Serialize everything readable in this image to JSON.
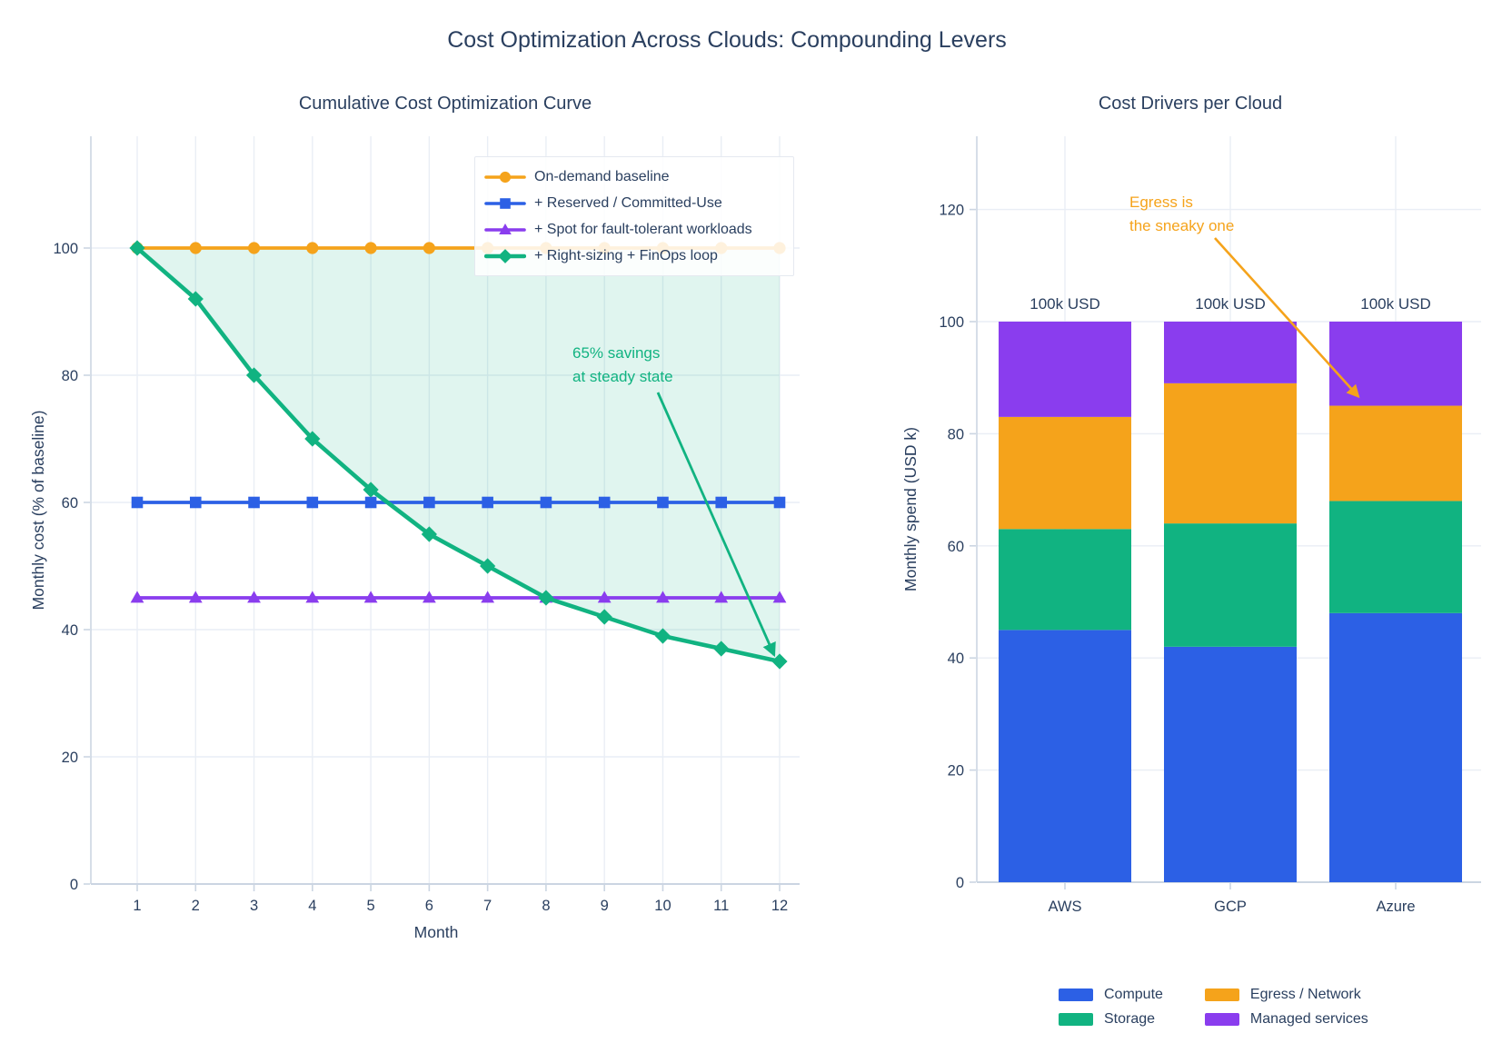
{
  "page_title": "Cost Optimization Across Clouds: Compounding Levers",
  "colors": {
    "orange": "#f5a31b",
    "blue": "#2c60e5",
    "purple": "#8a3dee",
    "green": "#11b381",
    "text": "#2a3f5f",
    "grid": "#e9eef5",
    "axis_line": "#cbd5e2",
    "area_fill": "rgba(17,179,129,0.13)"
  },
  "chart_data": [
    {
      "type": "line",
      "title": "Cumulative Cost Optimization Curve",
      "xlabel": "Month",
      "ylabel": "Monthly cost  (% of baseline)",
      "x": [
        1,
        2,
        3,
        4,
        5,
        6,
        7,
        8,
        9,
        10,
        11,
        12
      ],
      "yticks": [
        0,
        20,
        40,
        60,
        80,
        100
      ],
      "ylim": [
        0,
        117
      ],
      "grid": true,
      "legend_position": "top-right-inside",
      "series": [
        {
          "name": "On-demand baseline",
          "color": "#f5a31b",
          "marker": "circle",
          "values": [
            100,
            100,
            100,
            100,
            100,
            100,
            100,
            100,
            100,
            100,
            100,
            100
          ]
        },
        {
          "name": "+ Reserved / Committed-Use",
          "color": "#2c60e5",
          "marker": "square",
          "values": [
            60,
            60,
            60,
            60,
            60,
            60,
            60,
            60,
            60,
            60,
            60,
            60
          ]
        },
        {
          "name": "+ Spot for fault-tolerant workloads",
          "color": "#8a3dee",
          "marker": "triangle",
          "values": [
            45,
            45,
            45,
            45,
            45,
            45,
            45,
            45,
            45,
            45,
            45,
            45
          ]
        },
        {
          "name": "+ Right-sizing + FinOps loop",
          "color": "#11b381",
          "marker": "diamond",
          "fill_to": 100,
          "values": [
            100,
            92,
            80,
            70,
            62,
            55,
            50,
            45,
            42,
            39,
            37,
            35
          ]
        }
      ],
      "annotation": {
        "lines": [
          "65% savings",
          "at steady state"
        ],
        "color": "#11b381",
        "points_to": {
          "x": 12,
          "y": 35
        }
      }
    },
    {
      "type": "bar",
      "title": "Cost Drivers per Cloud",
      "xlabel": "",
      "ylabel": "Monthly spend  (USD k)",
      "categories": [
        "AWS",
        "GCP",
        "Azure"
      ],
      "yticks": [
        0,
        20,
        40,
        60,
        80,
        100,
        120
      ],
      "ylim": [
        0,
        133
      ],
      "grid": true,
      "stacked": true,
      "series": [
        {
          "name": "Compute",
          "color": "#2c60e5",
          "values": [
            45,
            42,
            48
          ]
        },
        {
          "name": "Storage",
          "color": "#11b381",
          "values": [
            18,
            22,
            20
          ]
        },
        {
          "name": "Egress / Network",
          "color": "#f5a31b",
          "values": [
            20,
            25,
            17
          ]
        },
        {
          "name": "Managed services",
          "color": "#8a3dee",
          "values": [
            17,
            11,
            15
          ]
        }
      ],
      "bar_totals": [
        "100k USD",
        "100k USD",
        "100k USD"
      ],
      "annotation": {
        "lines": [
          "Egress is",
          "the sneaky one"
        ],
        "color": "#f5a31b",
        "points_to": {
          "category": "Azure",
          "y": 85
        }
      }
    }
  ]
}
